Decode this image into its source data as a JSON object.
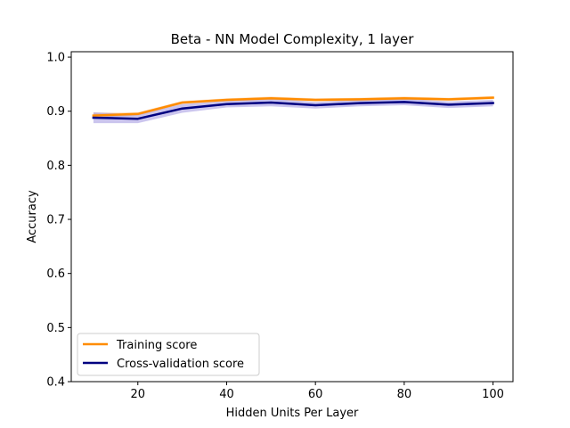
{
  "chart_data": {
    "type": "line",
    "title": "Beta - NN Model Complexity, 1 layer",
    "xlabel": "Hidden Units Per Layer",
    "ylabel": "Accuracy",
    "xlim": [
      5,
      104.5
    ],
    "ylim": [
      0.4,
      1.01
    ],
    "xticks": [
      20,
      40,
      60,
      80,
      100
    ],
    "yticks": [
      0.4,
      0.5,
      0.6,
      0.7,
      0.8,
      0.9,
      1.0
    ],
    "x": [
      10,
      20,
      30,
      40,
      50,
      60,
      70,
      80,
      90,
      100
    ],
    "grid": false,
    "legend_position": "lower-left",
    "series": [
      {
        "name": "Training score",
        "color": "#ff8c00",
        "band_color": "#ffa54f",
        "values": [
          0.892,
          0.895,
          0.916,
          0.921,
          0.924,
          0.921,
          0.922,
          0.924,
          0.922,
          0.925
        ],
        "band": [
          [
            0.888,
            0.897
          ],
          [
            0.892,
            0.898
          ],
          [
            0.913,
            0.919
          ],
          [
            0.918,
            0.924
          ],
          [
            0.921,
            0.927
          ],
          [
            0.918,
            0.924
          ],
          [
            0.919,
            0.925
          ],
          [
            0.921,
            0.927
          ],
          [
            0.919,
            0.925
          ],
          [
            0.922,
            0.928
          ]
        ]
      },
      {
        "name": "Cross-validation score",
        "color": "#000080",
        "band_color": "#6a5acd",
        "values": [
          0.888,
          0.886,
          0.905,
          0.913,
          0.916,
          0.911,
          0.915,
          0.917,
          0.912,
          0.915
        ],
        "band": [
          [
            0.878,
            0.898
          ],
          [
            0.878,
            0.894
          ],
          [
            0.897,
            0.913
          ],
          [
            0.907,
            0.919
          ],
          [
            0.909,
            0.923
          ],
          [
            0.905,
            0.917
          ],
          [
            0.909,
            0.921
          ],
          [
            0.911,
            0.923
          ],
          [
            0.906,
            0.918
          ],
          [
            0.909,
            0.921
          ]
        ]
      }
    ]
  }
}
